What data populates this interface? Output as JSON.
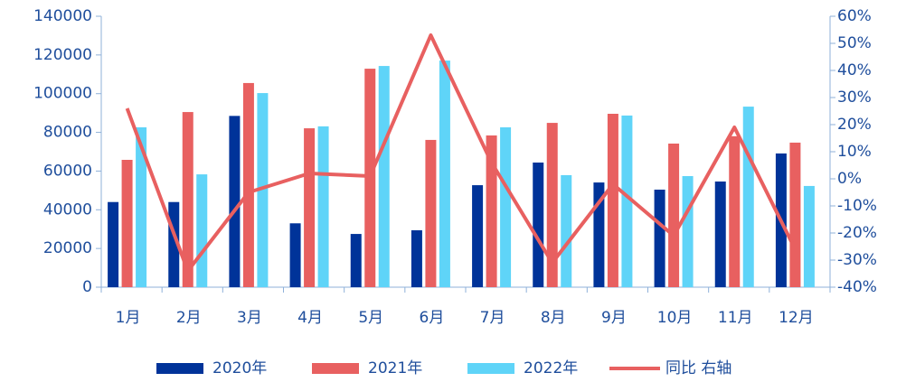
{
  "chart_data": {
    "type": "bar",
    "categories": [
      "1月",
      "2月",
      "3月",
      "4月",
      "5月",
      "6月",
      "7月",
      "8月",
      "9月",
      "10月",
      "11月",
      "12月"
    ],
    "series": [
      {
        "name": "2020年",
        "color": "#003399",
        "values": [
          44000,
          44000,
          88500,
          33000,
          27500,
          29400,
          52700,
          64400,
          54100,
          50400,
          54600,
          69100
        ]
      },
      {
        "name": "2021年",
        "color": "#e86060",
        "values": [
          65800,
          90500,
          105500,
          82100,
          112900,
          76100,
          78400,
          84900,
          89600,
          74200,
          78000,
          74700
        ]
      },
      {
        "name": "2022年",
        "color": "#5fd4f8",
        "values": [
          82600,
          58300,
          100300,
          83100,
          114300,
          117100,
          82600,
          57900,
          88700,
          57400,
          93300,
          52300
        ]
      },
      {
        "name": "同比 右轴",
        "color": "#e86060",
        "type": "line",
        "axis": "y2",
        "values": [
          26,
          -34,
          -5,
          2,
          1,
          53,
          6,
          -31,
          -2,
          -21,
          19,
          -26
        ]
      }
    ],
    "ylim": [
      0,
      140000
    ],
    "yticks": [
      0,
      20000,
      40000,
      60000,
      80000,
      100000,
      120000,
      140000
    ],
    "y2lim": [
      -40,
      60
    ],
    "y2ticks": [
      {
        "value": -40,
        "label": "-40%"
      },
      {
        "value": -30,
        "label": "-30%"
      },
      {
        "value": -20,
        "label": "-20%"
      },
      {
        "value": -10,
        "label": "-10%"
      },
      {
        "value": 0,
        "label": "0%"
      },
      {
        "value": 10,
        "label": "10%"
      },
      {
        "value": 20,
        "label": "20%"
      },
      {
        "value": 30,
        "label": "30%"
      },
      {
        "value": 40,
        "label": "40%"
      },
      {
        "value": 50,
        "label": "50%"
      },
      {
        "value": 60,
        "label": "60%"
      }
    ],
    "legend": "bottom"
  }
}
